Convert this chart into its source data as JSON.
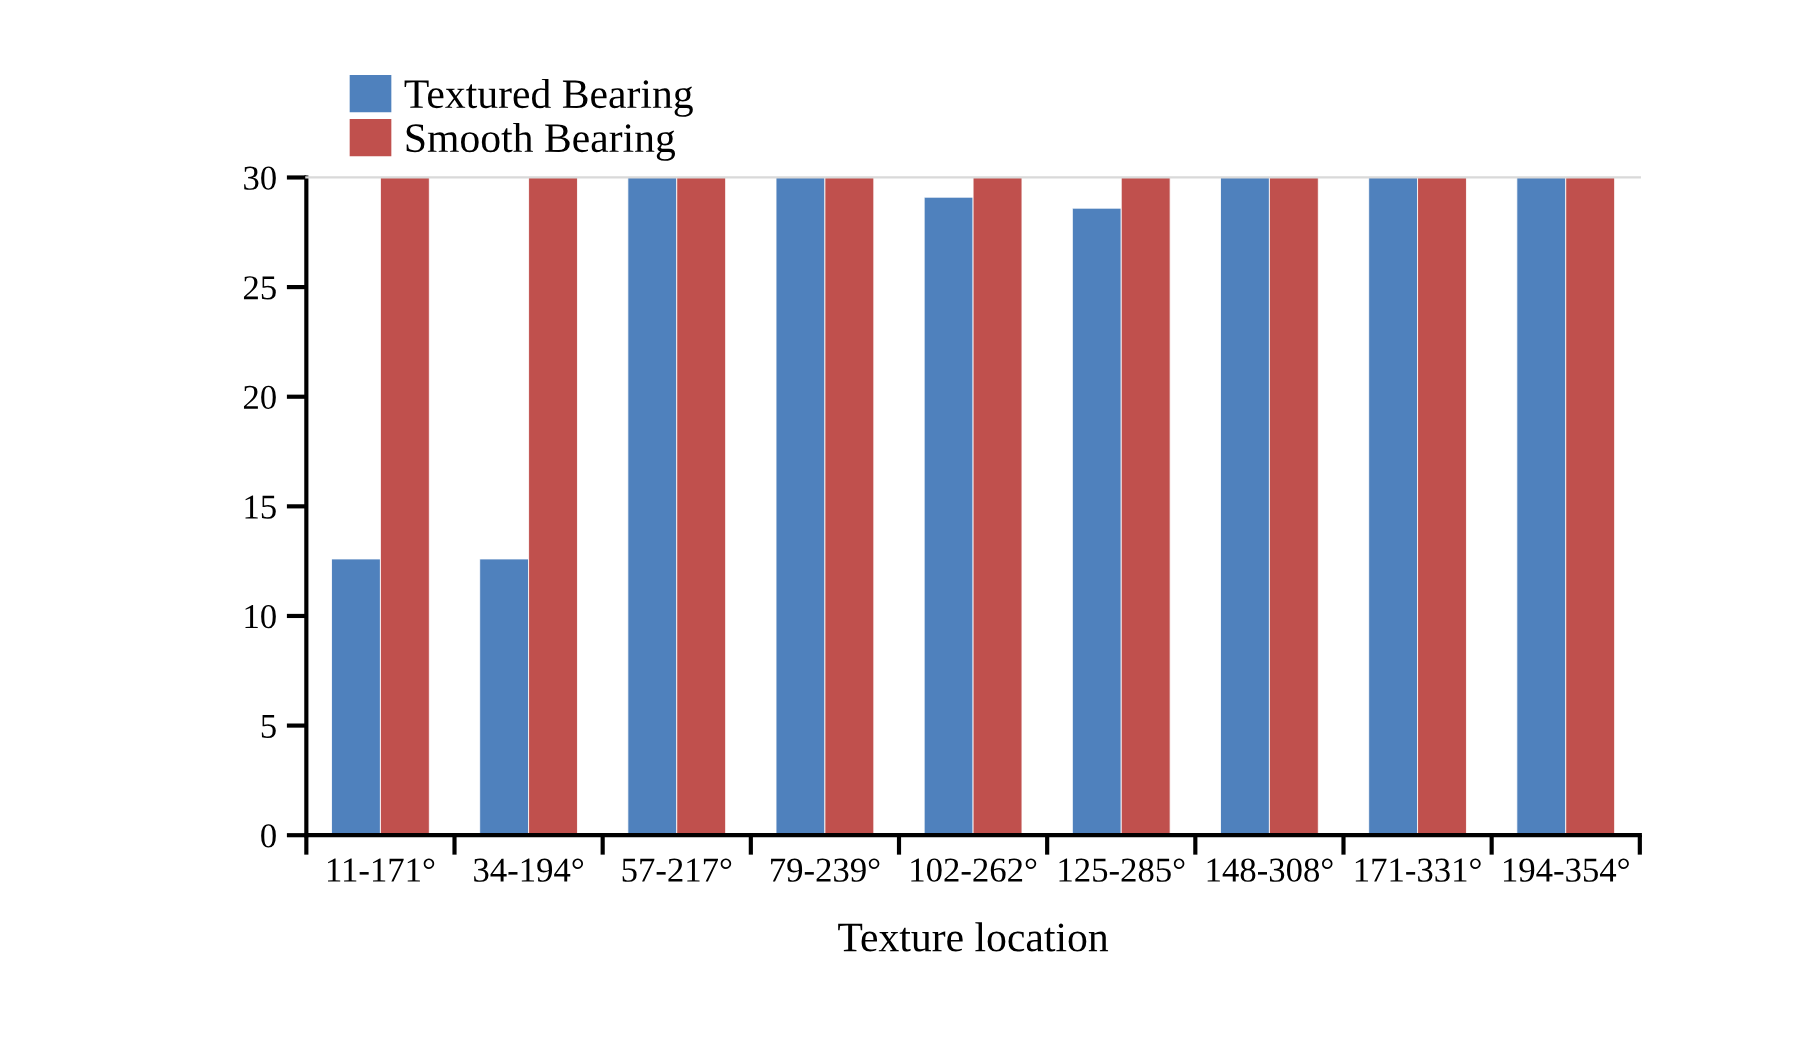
{
  "chart_data": {
    "type": "bar",
    "xlabel": "Texture location",
    "categories": [
      "11-171°",
      "34-194°",
      "57-217°",
      "79-239°",
      "102-262°",
      "125-285°",
      "148-308°",
      "171-331°",
      "194-354°"
    ],
    "series": [
      {
        "name": "Textured Bearing",
        "color": "#4f81bd",
        "values": [
          12.6,
          12.6,
          30,
          30,
          29.1,
          28.6,
          30,
          30,
          30
        ]
      },
      {
        "name": "Smooth Bearing",
        "color": "#c0504d",
        "values": [
          30,
          30,
          30,
          30,
          30,
          30,
          30,
          30,
          30
        ]
      }
    ],
    "ylim": [
      0,
      30
    ],
    "yticks": [
      0,
      5,
      10,
      15,
      20,
      25,
      30
    ],
    "legend": "top left",
    "grid": false
  }
}
